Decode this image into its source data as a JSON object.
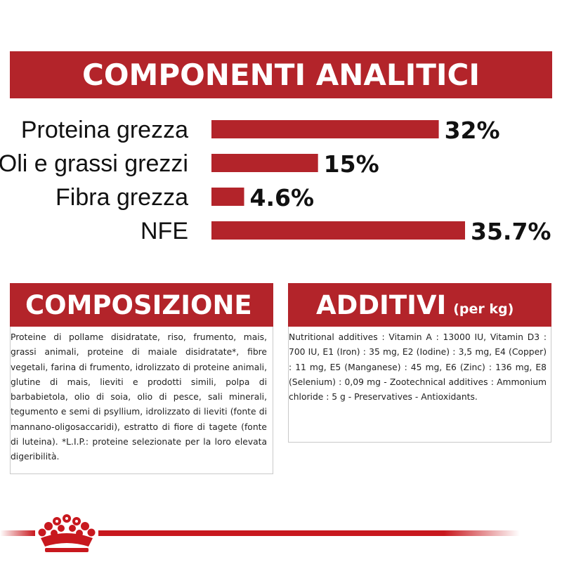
{
  "analytic_title": "COMPONENTI ANALITICI",
  "composition": {
    "title": "COMPOSIZIONE",
    "text": "Proteine di pollame disidratate, riso, frumento, mais, grassi animali, proteine di maiale disidratate*, fibre vegetali, farina di frumento, idrolizzato di proteine animali, glutine di mais, lieviti e prodotti simili, polpa di barbabietola, olio di soia, olio di pesce, sali minerali, tegumento e semi di psyllium, idrolizzato di lieviti (fonte di mannano-oligosaccaridi), estratto di fiore di tagete (fonte di luteina). *L.I.P.: proteine selezionate per la loro elevata digeribilità."
  },
  "additives": {
    "title": "ADDITIVI",
    "unit": "(per kg)",
    "text": "Nutritional additives : Vitamin A : 13000 IU, Vitamin D3 : 700 IU, E1 (Iron) : 35 mg, E2 (Iodine) : 3,5 mg, E4 (Copper) : 11 mg, E5 (Manganese) : 45 mg, E6 (Zinc) : 136 mg, E8 (Selenium) : 0,09 mg - Zootechnical additives : Ammonium chloride : 5 g - Preservatives - Antioxidants."
  },
  "colors": {
    "brand_red": "#b3242a",
    "bar_red": "#b3242a"
  },
  "footer": {
    "logo_icon": "crown-icon"
  },
  "chart_data": {
    "type": "bar",
    "orientation": "horizontal",
    "title": "COMPONENTI ANALITICI",
    "categories": [
      "Proteina grezza",
      "Oli e grassi grezzi",
      "Fibra grezza",
      "NFE"
    ],
    "values": [
      32,
      15,
      4.6,
      35.7
    ],
    "value_labels": [
      "32%",
      "15%",
      "4.6%",
      "35.7%"
    ],
    "xlim": [
      0,
      36
    ],
    "grid": false,
    "legend": "none"
  }
}
